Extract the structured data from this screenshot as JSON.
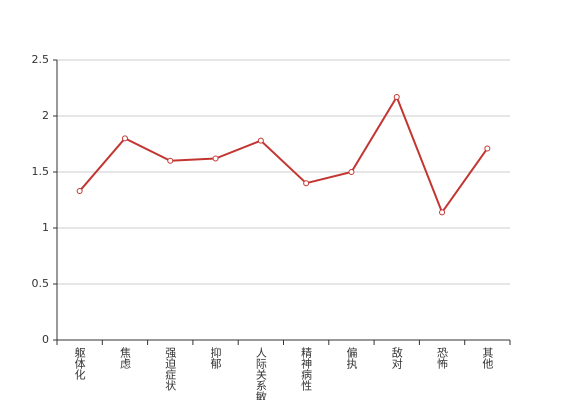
{
  "chart_data": {
    "type": "line",
    "categories": [
      "躯体化",
      "焦虑",
      "强迫症状",
      "抑郁",
      "人际关系敏感",
      "精神病性",
      "偏执",
      "敌对",
      "恐怖",
      "其他"
    ],
    "series": [
      {
        "color": "#c23531",
        "values": [
          1.33,
          1.8,
          1.6,
          1.62,
          1.78,
          1.4,
          1.5,
          2.17,
          1.14,
          1.71
        ]
      }
    ],
    "ylim": [
      0,
      2.5
    ],
    "yticks": [
      0,
      0.5,
      1,
      1.5,
      2,
      2.5
    ],
    "grid": true
  }
}
